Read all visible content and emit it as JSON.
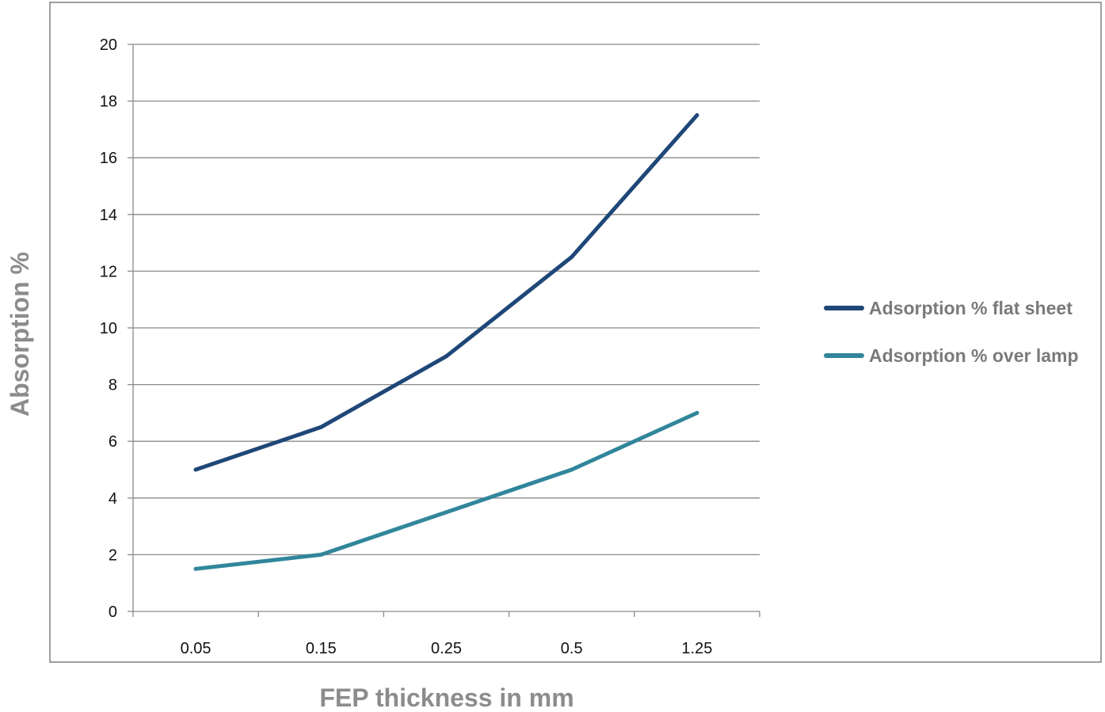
{
  "chart_data": {
    "type": "line",
    "title": "",
    "xlabel": "FEP thickness in mm",
    "ylabel": "Absorption %",
    "categories": [
      "0.05",
      "0.15",
      "0.25",
      "0.5",
      "1.25"
    ],
    "ylim": [
      0,
      20
    ],
    "yticks": [
      "0",
      "2",
      "4",
      "6",
      "8",
      "10",
      "12",
      "14",
      "16",
      "18",
      "20"
    ],
    "grid": true,
    "legend_position": "right",
    "series": [
      {
        "name": "Adsorption % flat sheet",
        "color": "#1f4778",
        "values": [
          5.0,
          6.5,
          9.0,
          12.5,
          17.5
        ]
      },
      {
        "name": "Adsorption % over lamp",
        "color": "#31869b",
        "values": [
          1.5,
          2.0,
          3.5,
          5.0,
          7.0
        ]
      }
    ]
  }
}
